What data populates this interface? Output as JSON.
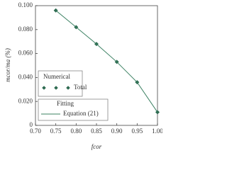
{
  "chart_data": {
    "type": "scatter",
    "x_label": "fcor",
    "y_label": "mcor/ma (%)",
    "xlim": [
      0.7,
      1.0
    ],
    "xticks": [
      {
        "value": 0.7,
        "label": "0.70"
      },
      0.75,
      {
        "value": 0.8,
        "label": "0.80"
      },
      0.85,
      {
        "value": 0.9,
        "label": "0.90"
      },
      0.95,
      {
        "value": 1.0,
        "label": "1.00"
      }
    ],
    "ylim": [
      0,
      0.1
    ],
    "yticks": [
      0,
      {
        "value": 0.02,
        "label": "0.020"
      },
      {
        "value": 0.04,
        "label": "0.040"
      },
      {
        "value": 0.06,
        "label": "0.060"
      },
      {
        "value": 0.08,
        "label": "0.080"
      },
      {
        "value": 0.1,
        "label": "0.100"
      }
    ],
    "series": [
      {
        "name": "Total",
        "legend_title": "Numerical",
        "type": "scatter",
        "color": "#2d6a50",
        "x": [
          0.75,
          0.8,
          0.85,
          0.9,
          0.95,
          1.0
        ],
        "values": [
          0.096,
          0.082,
          0.068,
          0.053,
          0.036,
          0.011
        ]
      },
      {
        "name": "Equation (21)",
        "legend_title": "Fitting",
        "type": "line",
        "color": "#3b8062",
        "x": [
          0.75,
          0.8,
          0.85,
          0.9,
          0.95,
          1.0
        ],
        "values": [
          0.096,
          0.082,
          0.068,
          0.053,
          0.036,
          0.011
        ]
      }
    ]
  }
}
